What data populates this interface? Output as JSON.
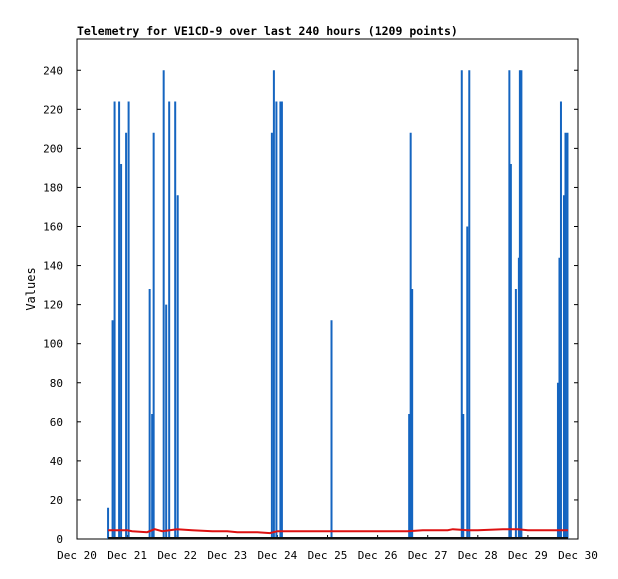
{
  "chart_data": {
    "type": "bar",
    "title": "Telemetry for VE1CD-9 over last 240 hours (1209 points)",
    "ylabel": "Values",
    "xlabel": "",
    "x_tick_labels": [
      "Dec 20",
      "Dec 21",
      "Dec 22",
      "Dec 23",
      "Dec 24",
      "Dec 25",
      "Dec 26",
      "Dec 27",
      "Dec 28",
      "Dec 29",
      "Dec 30"
    ],
    "y_ticks": [
      0,
      20,
      40,
      60,
      80,
      100,
      120,
      140,
      160,
      180,
      200,
      220,
      240
    ],
    "xlim_days": [
      20,
      30
    ],
    "ylim": [
      0,
      256
    ],
    "grid": false,
    "series": [
      {
        "kind": "bars",
        "color": "#1565c0",
        "points": [
          {
            "x_day": 20.62,
            "value": 16
          },
          {
            "x_day": 20.71,
            "value": 112
          },
          {
            "x_day": 20.75,
            "value": 224
          },
          {
            "x_day": 20.84,
            "value": 224
          },
          {
            "x_day": 20.88,
            "value": 192
          },
          {
            "x_day": 20.98,
            "value": 208
          },
          {
            "x_day": 21.03,
            "value": 224
          },
          {
            "x_day": 21.45,
            "value": 128
          },
          {
            "x_day": 21.5,
            "value": 64
          },
          {
            "x_day": 21.53,
            "value": 208
          },
          {
            "x_day": 21.73,
            "value": 240
          },
          {
            "x_day": 21.78,
            "value": 120
          },
          {
            "x_day": 21.84,
            "value": 224
          },
          {
            "x_day": 21.96,
            "value": 224
          },
          {
            "x_day": 22.01,
            "value": 176
          },
          {
            "x_day": 23.89,
            "value": 208
          },
          {
            "x_day": 23.93,
            "value": 240
          },
          {
            "x_day": 23.98,
            "value": 224
          },
          {
            "x_day": 24.06,
            "value": 224
          },
          {
            "x_day": 24.09,
            "value": 224
          },
          {
            "x_day": 25.08,
            "value": 112
          },
          {
            "x_day": 26.63,
            "value": 64
          },
          {
            "x_day": 26.66,
            "value": 208
          },
          {
            "x_day": 26.69,
            "value": 128
          },
          {
            "x_day": 27.68,
            "value": 240
          },
          {
            "x_day": 27.71,
            "value": 64
          },
          {
            "x_day": 27.79,
            "value": 160
          },
          {
            "x_day": 27.83,
            "value": 240
          },
          {
            "x_day": 28.63,
            "value": 240
          },
          {
            "x_day": 28.66,
            "value": 192
          },
          {
            "x_day": 28.76,
            "value": 128
          },
          {
            "x_day": 28.82,
            "value": 144
          },
          {
            "x_day": 28.84,
            "value": 240
          },
          {
            "x_day": 28.87,
            "value": 240
          },
          {
            "x_day": 29.6,
            "value": 80
          },
          {
            "x_day": 29.63,
            "value": 144
          },
          {
            "x_day": 29.66,
            "value": 224
          },
          {
            "x_day": 29.72,
            "value": 176
          },
          {
            "x_day": 29.75,
            "value": 208
          },
          {
            "x_day": 29.79,
            "value": 208
          }
        ]
      },
      {
        "kind": "line",
        "color": "#dd1111",
        "points": [
          [
            20.62,
            4.5
          ],
          [
            21.0,
            4.5
          ],
          [
            21.1,
            4.0
          ],
          [
            21.4,
            3.5
          ],
          [
            21.55,
            5.0
          ],
          [
            21.7,
            4.0
          ],
          [
            22.0,
            5.0
          ],
          [
            22.3,
            4.5
          ],
          [
            22.7,
            4.0
          ],
          [
            23.0,
            4.0
          ],
          [
            23.2,
            3.5
          ],
          [
            23.6,
            3.5
          ],
          [
            23.85,
            3.0
          ],
          [
            24.0,
            4.0
          ],
          [
            24.5,
            4.0
          ],
          [
            25.0,
            4.0
          ],
          [
            25.5,
            4.0
          ],
          [
            26.0,
            4.0
          ],
          [
            26.6,
            4.0
          ],
          [
            26.9,
            4.5
          ],
          [
            27.4,
            4.5
          ],
          [
            27.5,
            5.0
          ],
          [
            27.8,
            4.5
          ],
          [
            28.0,
            4.5
          ],
          [
            28.5,
            5.0
          ],
          [
            28.8,
            5.0
          ],
          [
            29.0,
            4.5
          ],
          [
            29.4,
            4.5
          ],
          [
            29.8,
            4.5
          ]
        ]
      },
      {
        "kind": "line",
        "color": "#111111",
        "points": [
          [
            20.62,
            0.5
          ],
          [
            29.8,
            0.5
          ]
        ]
      }
    ]
  }
}
